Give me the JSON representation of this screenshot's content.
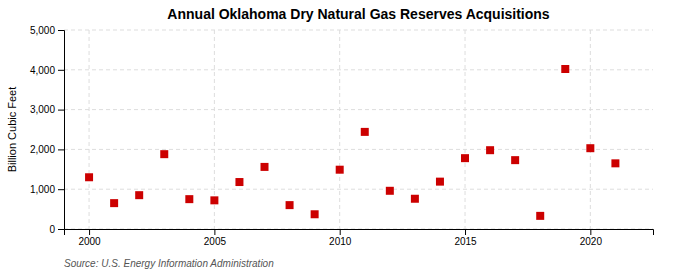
{
  "chart_data": {
    "type": "scatter",
    "title": "Annual Oklahoma Dry Natural Gas Reserves Acquisitions",
    "ylabel": "Billion Cubic Feet",
    "source": "Source: U.S. Energy Information Administration",
    "x": [
      2000,
      2001,
      2002,
      2003,
      2004,
      2005,
      2006,
      2007,
      2008,
      2009,
      2010,
      2011,
      2012,
      2013,
      2014,
      2015,
      2016,
      2017,
      2018,
      2019,
      2020,
      2021
    ],
    "values": [
      1300,
      650,
      850,
      1880,
      750,
      720,
      1180,
      1560,
      600,
      370,
      1490,
      2440,
      960,
      760,
      1190,
      1780,
      1980,
      1730,
      330,
      4020,
      2030,
      1650
    ],
    "color": "#cc0000",
    "marker": "square",
    "xlim": [
      1999,
      2022.5
    ],
    "xticks": [
      2000,
      2005,
      2010,
      2015,
      2020
    ],
    "ylim": [
      0,
      5000
    ],
    "yticks": [
      0,
      {
        "value": 1000,
        "label": "1,000"
      },
      {
        "value": 2000,
        "label": "2,000"
      },
      {
        "value": 3000,
        "label": "3,000"
      },
      {
        "value": 4000,
        "label": "4,000"
      },
      {
        "value": 5000,
        "label": "5,000"
      }
    ],
    "grid": true
  }
}
